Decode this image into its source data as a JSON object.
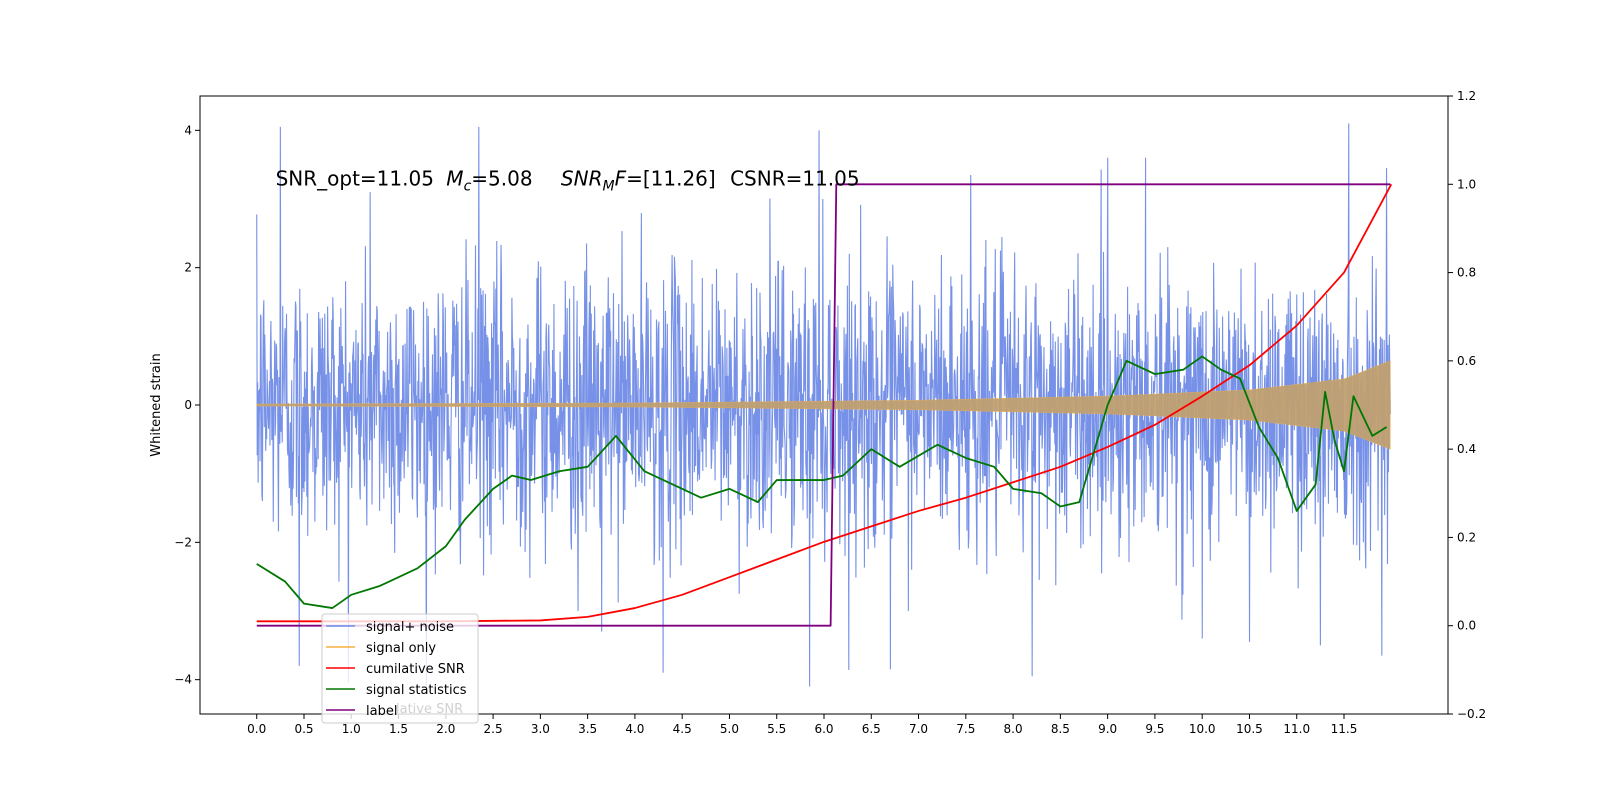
{
  "chart_data": {
    "type": "line",
    "title": "",
    "xlabel": "",
    "ylabel": "Whitened strain",
    "xlim": [
      -0.6,
      12.6
    ],
    "ylim": [
      -4.5,
      4.5
    ],
    "y2lim": [
      -0.2,
      1.2
    ],
    "grid": false,
    "legend_placement": "lower-left",
    "x_ticks": [
      0.0,
      0.5,
      1.0,
      1.5,
      2.0,
      2.5,
      3.0,
      3.5,
      4.0,
      4.5,
      5.0,
      5.5,
      6.0,
      6.5,
      7.0,
      7.5,
      8.0,
      8.5,
      9.0,
      9.5,
      10.0,
      10.5,
      11.0,
      11.5
    ],
    "x_tick_labels": [
      "0.0",
      "0.5",
      "1.0",
      "1.5",
      "2.0",
      "2.5",
      "3.0",
      "3.5",
      "4.0",
      "4.5",
      "5.0",
      "5.5",
      "6.0",
      "6.5",
      "7.0",
      "7.5",
      "8.0",
      "8.5",
      "9.0",
      "9.5",
      "10.0",
      "10.5",
      "11.0",
      "11.5"
    ],
    "y_ticks": [
      -4,
      -2,
      0,
      2,
      4
    ],
    "y_tick_labels": [
      "−4",
      "−2",
      "0",
      "2",
      "4"
    ],
    "y2_ticks": [
      -0.2,
      0.0,
      0.2,
      0.4,
      0.6,
      0.8,
      1.0,
      1.2
    ],
    "y2_tick_labels": [
      "−0.2",
      "0.0",
      "0.2",
      "0.4",
      "0.6",
      "0.8",
      "1.0",
      "1.2"
    ],
    "annotation": {
      "snr_opt": "SNR_opt=11.05",
      "mc_symbol": "M",
      "mc_sub": "c",
      "mc_value": "=5.08",
      "snrmf_symbol": "SNR",
      "snrmf_sub": "M",
      "snrmf_f": "F",
      "snrmf_value": "=[11.26]",
      "csnr": "CSNR=11.05",
      "x": 0.2,
      "y": 3.3
    },
    "series": [
      {
        "name": "signal+ noise",
        "color": "#6f8be6",
        "axis": "left",
        "kind": "noise",
        "x_range": [
          0.0,
          11.99
        ],
        "spikes": [
          [
            0.25,
            4.05
          ],
          [
            0.45,
            -3.8
          ],
          [
            1.2,
            3.1
          ],
          [
            2.35,
            4.05
          ],
          [
            3.4,
            -3.0
          ],
          [
            3.65,
            -3.3
          ],
          [
            4.3,
            -3.9
          ],
          [
            5.85,
            -4.1
          ],
          [
            5.95,
            4.0
          ],
          [
            6.7,
            -3.85
          ],
          [
            7.55,
            3.35
          ],
          [
            8.2,
            -3.95
          ],
          [
            9.0,
            3.6
          ],
          [
            9.4,
            3.6
          ],
          [
            10.0,
            -3.4
          ],
          [
            10.5,
            -3.45
          ],
          [
            11.25,
            -3.5
          ],
          [
            11.55,
            4.1
          ],
          [
            11.9,
            -3.65
          ],
          [
            11.95,
            3.45
          ]
        ]
      },
      {
        "name": "signal only",
        "color": "#f5b041",
        "axis": "left",
        "kind": "chirp",
        "envelope": [
          [
            0.0,
            0.015
          ],
          [
            4.0,
            0.03
          ],
          [
            7.0,
            0.07
          ],
          [
            9.0,
            0.13
          ],
          [
            10.5,
            0.22
          ],
          [
            11.5,
            0.38
          ],
          [
            12.0,
            0.65
          ]
        ]
      },
      {
        "name": "cumilative SNR",
        "color": "#ff0000",
        "axis": "right",
        "x": [
          0.0,
          1.0,
          2.0,
          3.0,
          3.5,
          4.0,
          4.5,
          5.0,
          5.5,
          6.0,
          6.5,
          7.0,
          7.5,
          8.0,
          8.5,
          9.0,
          9.5,
          10.0,
          10.5,
          11.0,
          11.5,
          12.0
        ],
        "y": [
          0.01,
          0.01,
          0.01,
          0.012,
          0.02,
          0.04,
          0.07,
          0.11,
          0.15,
          0.19,
          0.225,
          0.26,
          0.29,
          0.325,
          0.36,
          0.405,
          0.455,
          0.52,
          0.59,
          0.68,
          0.8,
          1.0
        ]
      },
      {
        "name": "signal statistics",
        "color": "#007700",
        "axis": "right",
        "x": [
          0.0,
          0.3,
          0.5,
          0.8,
          1.0,
          1.3,
          1.5,
          1.7,
          2.0,
          2.2,
          2.5,
          2.7,
          2.9,
          3.2,
          3.5,
          3.8,
          4.1,
          4.4,
          4.7,
          5.0,
          5.3,
          5.5,
          6.0,
          6.2,
          6.5,
          6.8,
          7.2,
          7.5,
          7.8,
          8.0,
          8.3,
          8.5,
          8.7,
          9.0,
          9.2,
          9.5,
          9.8,
          10.0,
          10.2,
          10.4,
          10.6,
          10.8,
          11.0,
          11.2,
          11.3,
          11.4,
          11.5,
          11.6,
          11.8,
          11.95
        ],
        "y": [
          0.14,
          0.1,
          0.05,
          0.04,
          0.07,
          0.09,
          0.11,
          0.13,
          0.18,
          0.24,
          0.31,
          0.34,
          0.33,
          0.35,
          0.36,
          0.43,
          0.35,
          0.32,
          0.29,
          0.31,
          0.28,
          0.33,
          0.33,
          0.34,
          0.4,
          0.36,
          0.41,
          0.38,
          0.36,
          0.31,
          0.3,
          0.27,
          0.28,
          0.5,
          0.6,
          0.57,
          0.58,
          0.61,
          0.58,
          0.56,
          0.45,
          0.38,
          0.26,
          0.32,
          0.53,
          0.42,
          0.35,
          0.52,
          0.43,
          0.45
        ]
      },
      {
        "name": "label",
        "color": "#7f007f",
        "axis": "right",
        "x": [
          0.0,
          6.07,
          6.13,
          11.99
        ],
        "y": [
          0.0,
          0.0,
          1.0,
          1.0
        ]
      }
    ],
    "legend": {
      "entries": [
        "signal+ noise",
        "signal only",
        "cumilative SNR",
        "signal statistics",
        "label"
      ],
      "overlap_text": "lative SNR"
    }
  }
}
